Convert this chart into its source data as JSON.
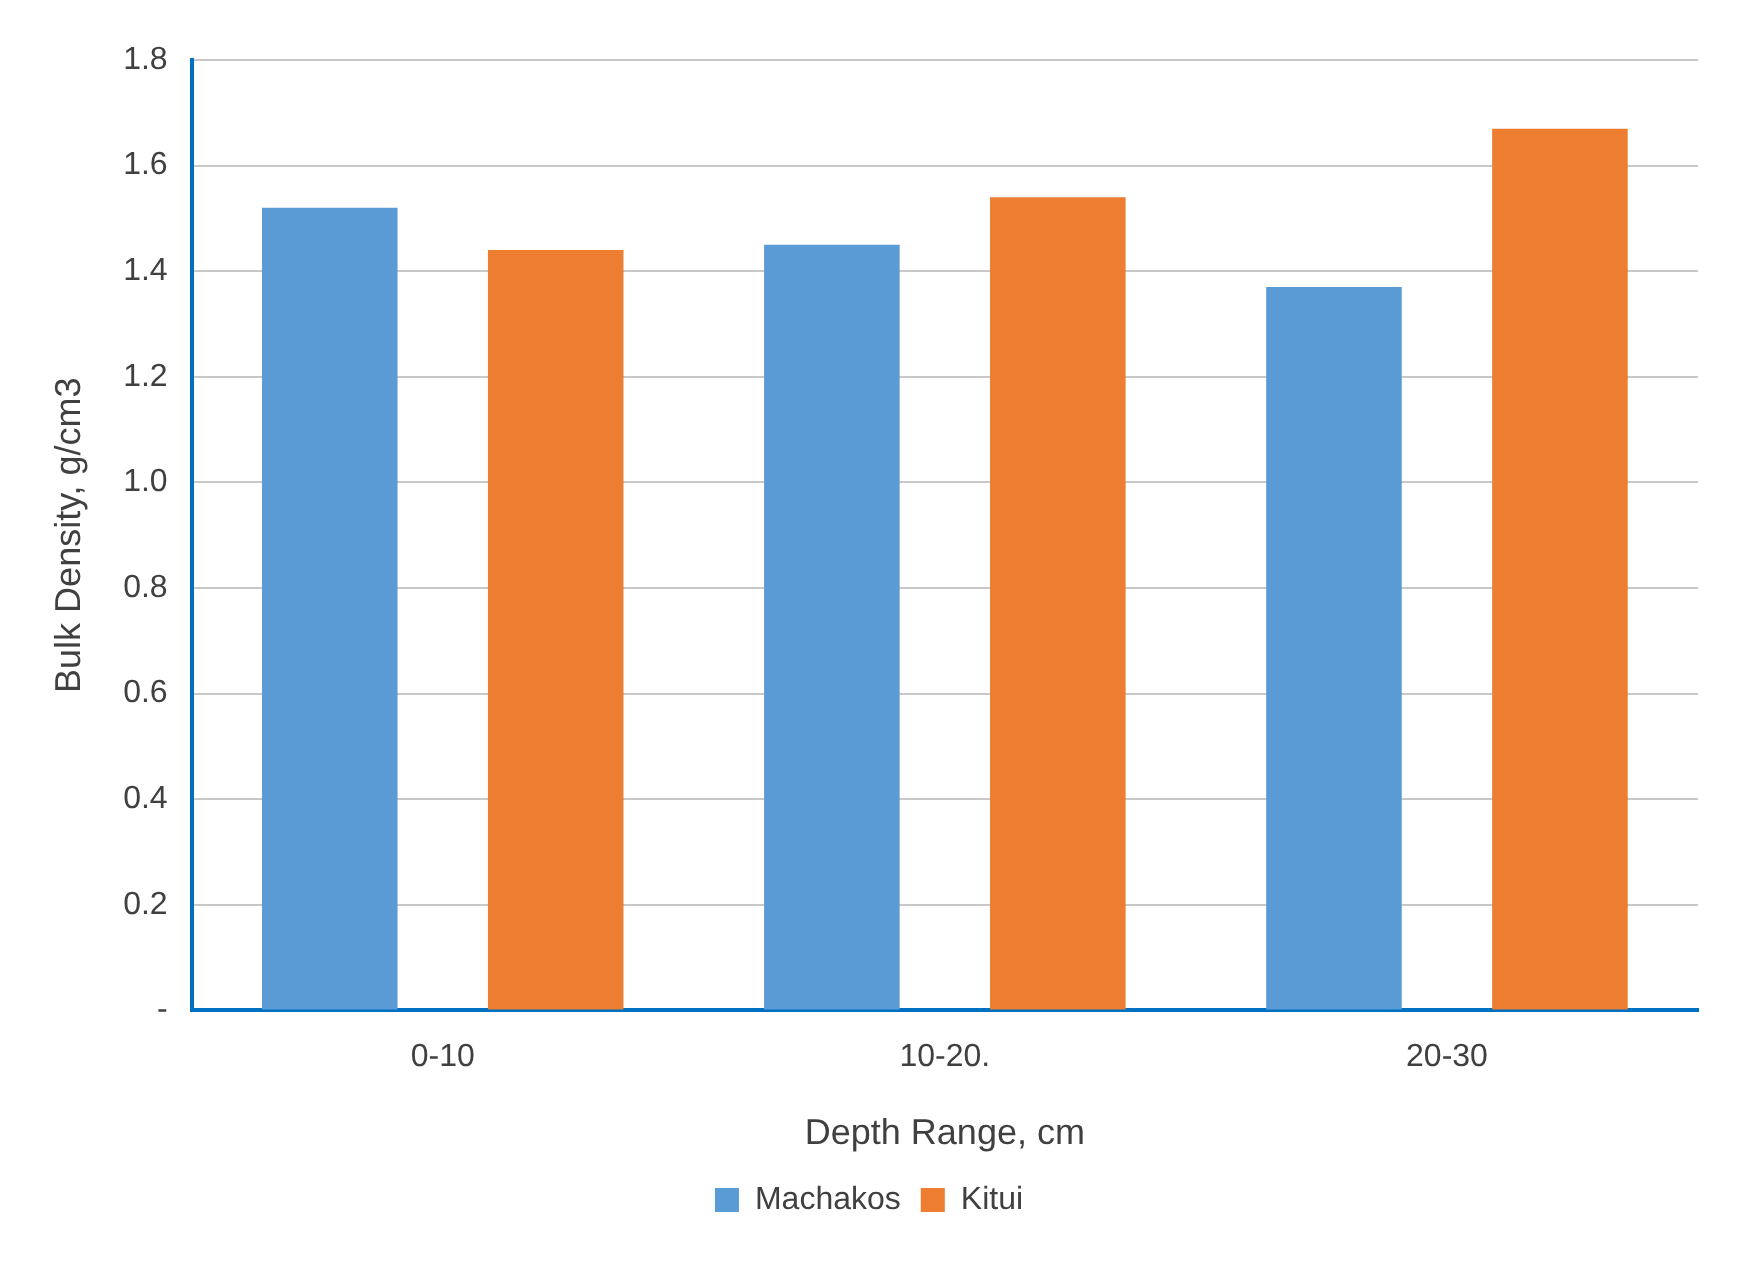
{
  "chart_data": {
    "type": "bar",
    "xlabel": "Depth Range, cm",
    "ylabel": "Bulk Density, g/cm3",
    "categories": [
      "0-10",
      "10-20.",
      "20-30"
    ],
    "series": [
      {
        "name": "Machakos",
        "color": "#5b9bd5",
        "values": [
          1.52,
          1.45,
          1.37
        ]
      },
      {
        "name": "Kitui",
        "color": "#ed7d31",
        "values": [
          1.44,
          1.54,
          1.67
        ]
      }
    ],
    "ylim": [
      0,
      1.8
    ],
    "yticks": [
      {
        "value": 0,
        "label": "-"
      },
      0.2,
      0.4,
      0.6,
      0.8,
      {
        "value": 1,
        "label": "1.0"
      },
      1.2,
      1.4,
      1.6,
      1.8
    ],
    "grid": "y",
    "legend": "bottom"
  }
}
